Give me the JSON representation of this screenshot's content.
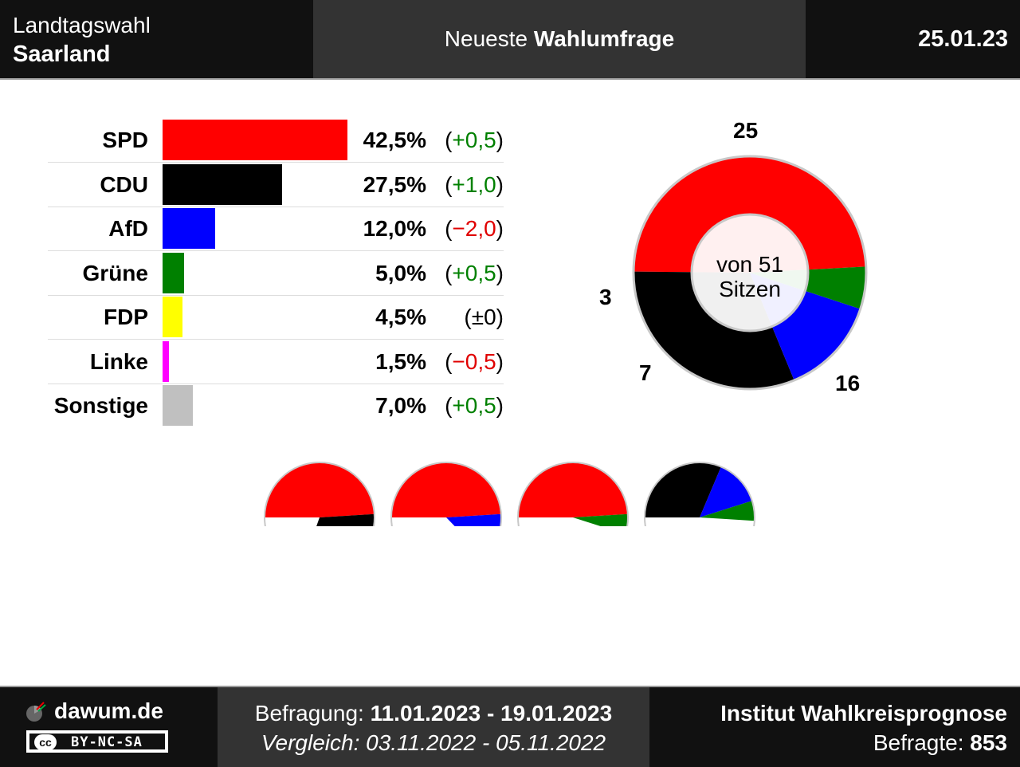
{
  "header": {
    "election_type": "Landtagswahl",
    "state": "Saarland",
    "title_prefix": "Neueste",
    "title_bold": "Wahlumfrage",
    "date": "25.01.23"
  },
  "chart_data": [
    {
      "type": "bar",
      "categories": [
        "SPD",
        "CDU",
        "AfD",
        "Grüne",
        "FDP",
        "Linke",
        "Sonstige"
      ],
      "values": [
        42.5,
        27.5,
        12.0,
        5.0,
        4.5,
        1.5,
        7.0
      ],
      "value_labels": [
        "42,5%",
        "27,5%",
        "12,0%",
        "5,0%",
        "4,5%",
        "1,5%",
        "7,0%"
      ],
      "changes": [
        "(+0,5)",
        "(+1,0)",
        "(−2,0)",
        "(+0,5)",
        "(±0)",
        "(−0,5)",
        "(+0,5)"
      ],
      "change_sign": [
        "pos",
        "pos",
        "neg",
        "pos",
        "zero",
        "neg",
        "pos"
      ],
      "colors": [
        "#ff0000",
        "#000000",
        "#0000ff",
        "#008000",
        "#ffff00",
        "#ff00ff",
        "#c0c0c0"
      ]
    },
    {
      "type": "pie",
      "variant": "donut",
      "center_label": [
        "von 51",
        "Sitzen"
      ],
      "slices": [
        {
          "party": "SPD",
          "seats": 25,
          "color": "#ff0000"
        },
        {
          "party": "CDU",
          "seats": 16,
          "color": "#000000"
        },
        {
          "party": "AfD",
          "seats": 7,
          "color": "#0000ff"
        },
        {
          "party": "Grüne",
          "seats": 3,
          "color": "#008000"
        }
      ]
    },
    {
      "type": "pie",
      "variant": "coalitions",
      "total_seats": 51,
      "coalitions": [
        {
          "parties": [
            "SPD",
            "CDU"
          ],
          "seats": [
            25,
            16
          ],
          "colors": [
            "#ff0000",
            "#000000"
          ]
        },
        {
          "parties": [
            "SPD",
            "AfD"
          ],
          "seats": [
            25,
            7
          ],
          "colors": [
            "#ff0000",
            "#0000ff"
          ]
        },
        {
          "parties": [
            "SPD",
            "Grüne"
          ],
          "seats": [
            25,
            3
          ],
          "colors": [
            "#ff0000",
            "#008000"
          ]
        },
        {
          "parties": [
            "CDU",
            "AfD",
            "Grüne"
          ],
          "seats": [
            16,
            7,
            3
          ],
          "colors": [
            "#000000",
            "#0000ff",
            "#008000"
          ]
        }
      ],
      "half_circle": {
        "parties": [
          "CDU",
          "AfD"
        ],
        "seats": [
          16,
          7
        ],
        "colors": [
          "#000000",
          "#0000ff"
        ]
      }
    }
  ],
  "footer": {
    "site": "dawum.de",
    "license": "BY-NC-SA",
    "license_badge": "cc",
    "survey_label": "Befragung:",
    "survey_period": "11.01.2023 - 19.01.2023",
    "compare_text": "Vergleich: 03.11.2022 - 05.11.2022",
    "institute": "Institut Wahlkreisprognose",
    "respondents_label": "Befragte:",
    "respondents": "853"
  }
}
